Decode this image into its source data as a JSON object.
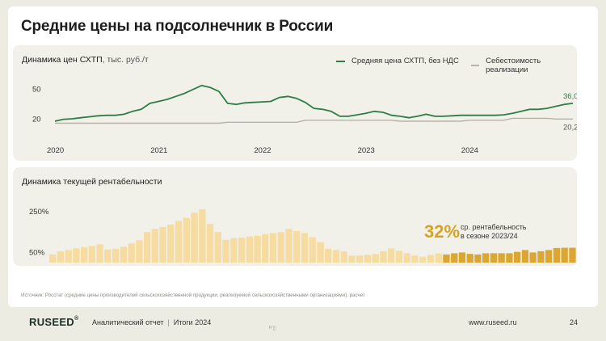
{
  "page": {
    "title": "Средние цены на подсолнечник в России",
    "source": "Источник: Росстат (средние цены производителей сельскохозяйственной продукции, реализуемой сельскохозяйственными организациями), расчет",
    "footer": {
      "brand": "RUSEED",
      "brand_mark": "®",
      "report": "Аналитический отчет",
      "separator": "|",
      "period": "Итоги 2024",
      "url": "www.ruseed.ru",
      "page_number": "24",
      "mark": "ᴿ𝔇"
    }
  },
  "callout": {
    "value": "32%",
    "line1": "ср. рентабельность",
    "line2": "в сезоне 2023/24"
  },
  "chart_data": [
    {
      "type": "line",
      "title": "Динамика цен СХТП",
      "unit": ", тыс. руб./т",
      "x_ticks": [
        "2020",
        "2021",
        "2022",
        "2023",
        "2024"
      ],
      "y_ticks": [
        "50",
        "20"
      ],
      "y_tick_values": [
        50,
        20
      ],
      "ylim": [
        5,
        62
      ],
      "x_domain": [
        0,
        60
      ],
      "colors": {
        "price": "#2e7d46",
        "cost": "#b7b2a6"
      },
      "series": [
        {
          "name": "Средняя цена СХТП, без НДС",
          "x": [
            0,
            1,
            2,
            3,
            4,
            5,
            6,
            7,
            8,
            9,
            10,
            11,
            12,
            13,
            14,
            15,
            16,
            17,
            18,
            19,
            20,
            21,
            22,
            23,
            24,
            25,
            26,
            27,
            28,
            29,
            30,
            31,
            32,
            33,
            34,
            35,
            36,
            37,
            38,
            39,
            40,
            41,
            42,
            43,
            44,
            45,
            46,
            47,
            48,
            49,
            50,
            51,
            52,
            53,
            54,
            55,
            56,
            57,
            58,
            59,
            60
          ],
          "values": [
            18,
            20,
            20.5,
            21.5,
            22.5,
            23.5,
            24,
            24,
            25,
            28,
            30,
            36,
            38,
            40,
            43,
            46,
            50,
            54,
            52,
            48,
            36,
            35,
            36.5,
            37,
            37.5,
            38,
            42,
            43,
            41,
            37,
            31,
            30,
            28,
            23,
            23,
            24.5,
            26,
            28,
            27,
            24,
            23,
            21.5,
            23,
            25,
            23,
            23,
            23.5,
            24,
            24,
            24,
            24,
            24,
            24.5,
            26,
            28,
            30,
            30,
            31,
            33,
            35,
            36
          ]
        },
        {
          "name": "Себестоимость реализации",
          "x": [
            0,
            19,
            20,
            28,
            29,
            39,
            40,
            47,
            48,
            52,
            53,
            57,
            58,
            60
          ],
          "values": [
            16,
            16,
            17,
            17,
            19,
            19,
            18,
            18,
            19,
            19,
            21,
            21,
            20.2,
            20.2
          ]
        }
      ],
      "end_labels": {
        "price": "36,0",
        "cost": "20,2"
      }
    },
    {
      "type": "bar",
      "title": "Динамика текущей рентабельности",
      "x_ticks": [
        "2020",
        "2021",
        "2022",
        "2023",
        "2024"
      ],
      "y_ticks": [
        "250%",
        "50%"
      ],
      "y_tick_values": [
        250,
        50
      ],
      "ylim": [
        0,
        270
      ],
      "colors": {
        "bar": "#f6dca0",
        "highlight": "#dba631"
      },
      "highlight_from_index": 50,
      "values": [
        40,
        55,
        62,
        70,
        76,
        82,
        90,
        65,
        68,
        78,
        95,
        110,
        150,
        165,
        175,
        188,
        205,
        220,
        245,
        262,
        190,
        150,
        112,
        120,
        122,
        128,
        132,
        140,
        145,
        150,
        165,
        155,
        145,
        125,
        100,
        68,
        62,
        55,
        34,
        35,
        38,
        42,
        56,
        70,
        58,
        46,
        35,
        29,
        37,
        45,
        40,
        46,
        50,
        43,
        40,
        46,
        46,
        46,
        46,
        53,
        62,
        50,
        56,
        62,
        72,
        73,
        73
      ]
    }
  ]
}
